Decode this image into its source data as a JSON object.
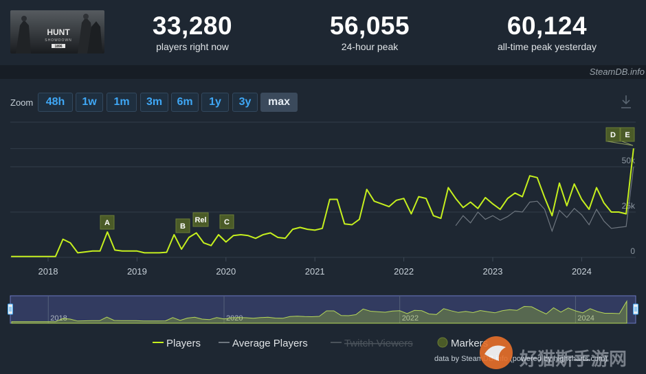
{
  "stats": [
    {
      "value": "33,280",
      "label": "players right now"
    },
    {
      "value": "56,055",
      "label": "24-hour peak"
    },
    {
      "value": "60,124",
      "label": "all-time peak yesterday"
    }
  ],
  "game": {
    "thumb_title": "HUNT",
    "thumb_subtitle": "SHOWDOWN",
    "thumb_tag": "1896"
  },
  "credit": "SteamDB.info",
  "zoom": {
    "label": "Zoom",
    "options": [
      "48h",
      "1w",
      "1m",
      "3m",
      "6m",
      "1y",
      "3y",
      "max"
    ],
    "active": "max"
  },
  "download_icon": "download-icon",
  "colors": {
    "players": "#c6f01e",
    "average": "#6f7780",
    "background": "#1e2732",
    "marker": "#4b5b28",
    "accent": "#3fa7f5"
  },
  "chart_data": {
    "type": "line",
    "x_tick_labels": [
      "2018",
      "2019",
      "2020",
      "2021",
      "2022",
      "2023",
      "2024"
    ],
    "y_tick_labels": [
      "0",
      "25k",
      "50k"
    ],
    "ylim": [
      0,
      60000
    ],
    "grid": true,
    "series": [
      {
        "name": "Players",
        "x": [
          "2017-08",
          "2017-10",
          "2017-12",
          "2018-02",
          "2018-03",
          "2018-04",
          "2018-05",
          "2018-06",
          "2018-07",
          "2018-08",
          "2018-09",
          "2018-10",
          "2018-11",
          "2018-12",
          "2019-01",
          "2019-02",
          "2019-03",
          "2019-04",
          "2019-05",
          "2019-06",
          "2019-07",
          "2019-08",
          "2019-09",
          "2019-10",
          "2019-11",
          "2019-12",
          "2020-01",
          "2020-02",
          "2020-03",
          "2020-04",
          "2020-05",
          "2020-06",
          "2020-07",
          "2020-08",
          "2020-09",
          "2020-10",
          "2020-11",
          "2020-12",
          "2021-01",
          "2021-02",
          "2021-03",
          "2021-04",
          "2021-05",
          "2021-06",
          "2021-07",
          "2021-08",
          "2021-09",
          "2021-10",
          "2021-11",
          "2021-12",
          "2022-01",
          "2022-02",
          "2022-03",
          "2022-04",
          "2022-05",
          "2022-06",
          "2022-07",
          "2022-08",
          "2022-09",
          "2022-10",
          "2022-11",
          "2022-12",
          "2023-01",
          "2023-02",
          "2023-03",
          "2023-04",
          "2023-05",
          "2023-06",
          "2023-07",
          "2023-08",
          "2023-09",
          "2023-10",
          "2023-11",
          "2023-12",
          "2024-01",
          "2024-02",
          "2024-03",
          "2024-04",
          "2024-05",
          "2024-06",
          "2024-07",
          "2024-08"
        ],
        "values": [
          500,
          500,
          500,
          500,
          10000,
          8000,
          2500,
          3000,
          3500,
          3500,
          14000,
          4000,
          3500,
          3500,
          3500,
          2500,
          2500,
          2500,
          2800,
          12500,
          4500,
          11000,
          13500,
          8000,
          6500,
          12500,
          8500,
          12000,
          12500,
          12000,
          10500,
          12500,
          13500,
          11000,
          10500,
          15500,
          16500,
          15500,
          15000,
          16000,
          32000,
          32000,
          18500,
          18000,
          21000,
          37500,
          31000,
          29500,
          28000,
          31500,
          32500,
          24000,
          33500,
          32500,
          23000,
          21500,
          38500,
          32500,
          27500,
          30500,
          27000,
          33000,
          29500,
          26500,
          32500,
          35500,
          33500,
          45000,
          44000,
          33000,
          23000,
          41000,
          28500,
          40500,
          32000,
          26500,
          38500,
          30000,
          25000,
          25000,
          24000,
          60124
        ]
      },
      {
        "name": "Average Players",
        "x": [
          "2022-08",
          "2022-09",
          "2022-10",
          "2022-11",
          "2022-12",
          "2023-01",
          "2023-02",
          "2023-03",
          "2023-04",
          "2023-05",
          "2023-06",
          "2023-07",
          "2023-08",
          "2023-09",
          "2023-10",
          "2023-11",
          "2023-12",
          "2024-01",
          "2024-02",
          "2024-03",
          "2024-04",
          "2024-05",
          "2024-06",
          "2024-07",
          "2024-08"
        ],
        "values": [
          17500,
          23000,
          19000,
          25000,
          21000,
          23000,
          20500,
          22500,
          25500,
          25000,
          30500,
          31000,
          26500,
          14500,
          26000,
          22000,
          27000,
          23500,
          18000,
          26500,
          20000,
          16000,
          16500,
          17000,
          50000
        ]
      },
      {
        "name": "Twitch Viewers",
        "x": [],
        "values": [],
        "hidden": true
      }
    ],
    "markers": [
      {
        "label": "A",
        "x": "2018-08"
      },
      {
        "label": "B",
        "x": "2019-07"
      },
      {
        "label": "Rel",
        "x": "2019-09"
      },
      {
        "label": "C",
        "x": "2020-01"
      },
      {
        "label": "D",
        "x": "2024-08"
      },
      {
        "label": "E",
        "x": "2024-08"
      }
    ],
    "navigator": {
      "x_tick_labels": [
        "2018",
        "2020",
        "2022",
        "2024"
      ]
    },
    "legend": [
      {
        "name": "Players",
        "symbol": "line"
      },
      {
        "name": "Average Players",
        "symbol": "line"
      },
      {
        "name": "Twitch Viewers",
        "symbol": "line",
        "hidden": true
      },
      {
        "name": "Markers",
        "symbol": "circle"
      }
    ],
    "attribution": "data by SteamDB.info (powered by highcharts.com)"
  }
}
